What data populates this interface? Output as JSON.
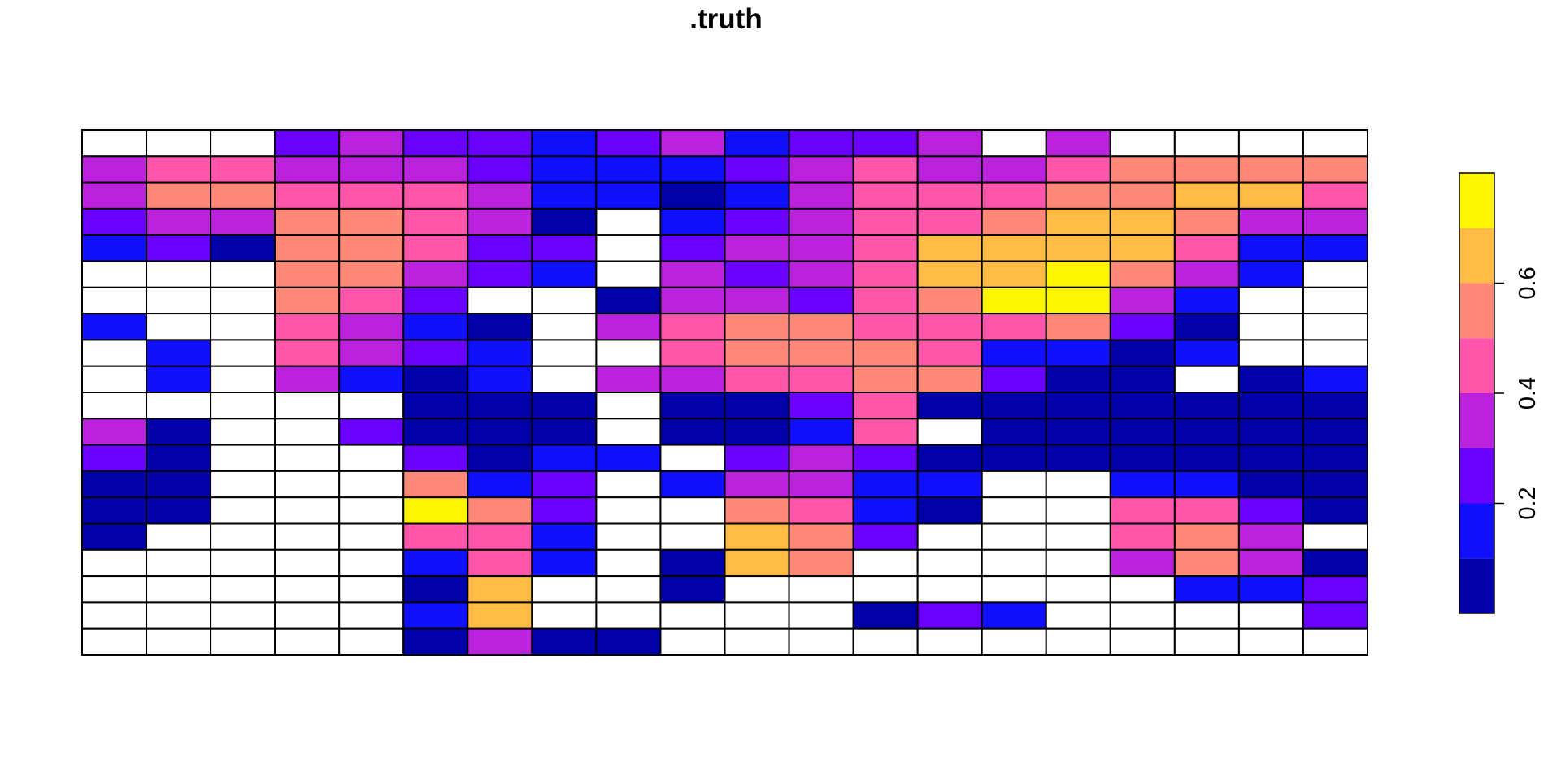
{
  "chart_data": {
    "type": "heatmap",
    "title": ".truth",
    "xlabel": "",
    "ylabel": "",
    "n_rows": 20,
    "n_cols": 20,
    "grid": true,
    "legend": "right",
    "na_color": "#FFFFFF",
    "color_breaks": [
      0.0,
      0.1,
      0.2,
      0.3,
      0.4,
      0.5,
      0.6,
      0.7,
      0.8
    ],
    "colors": [
      "#0000AA",
      "#1010FF",
      "#6A00FF",
      "#BB22DD",
      "#FF55AA",
      "#FF8877",
      "#FFBB44",
      "#FFF500"
    ],
    "colorbar": {
      "ticks": [
        0.2,
        0.4,
        0.6
      ],
      "tick_labels": [
        "0.2",
        "0.4",
        "0.6"
      ],
      "range": [
        0.0,
        0.8
      ]
    },
    "values": [
      [
        null,
        null,
        null,
        0.25,
        0.35,
        0.25,
        0.25,
        0.15,
        0.25,
        0.35,
        0.15,
        0.25,
        0.25,
        0.35,
        null,
        0.35,
        null,
        null,
        null,
        null
      ],
      [
        0.35,
        0.45,
        0.45,
        0.35,
        0.35,
        0.35,
        0.25,
        0.15,
        0.15,
        0.15,
        0.25,
        0.35,
        0.45,
        0.35,
        0.35,
        0.45,
        0.55,
        0.55,
        0.55,
        0.55
      ],
      [
        0.35,
        0.55,
        0.55,
        0.45,
        0.45,
        0.45,
        0.35,
        0.15,
        0.15,
        0.05,
        0.15,
        0.35,
        0.45,
        0.45,
        0.45,
        0.55,
        0.55,
        0.65,
        0.65,
        0.45
      ],
      [
        0.25,
        0.35,
        0.35,
        0.55,
        0.55,
        0.45,
        0.35,
        0.05,
        null,
        0.15,
        0.25,
        0.35,
        0.45,
        0.45,
        0.55,
        0.65,
        0.65,
        0.55,
        0.35,
        0.35
      ],
      [
        0.15,
        0.25,
        0.05,
        0.55,
        0.55,
        0.45,
        0.25,
        0.25,
        null,
        0.25,
        0.35,
        0.35,
        0.45,
        0.65,
        0.65,
        0.65,
        0.65,
        0.45,
        0.15,
        0.15
      ],
      [
        null,
        null,
        null,
        0.55,
        0.55,
        0.35,
        0.25,
        0.15,
        null,
        0.35,
        0.25,
        0.35,
        0.45,
        0.65,
        0.65,
        0.75,
        0.55,
        0.35,
        0.15,
        null
      ],
      [
        null,
        null,
        null,
        0.55,
        0.45,
        0.25,
        null,
        null,
        0.05,
        0.35,
        0.35,
        0.25,
        0.45,
        0.55,
        0.75,
        0.75,
        0.35,
        0.15,
        null,
        null
      ],
      [
        0.15,
        null,
        null,
        0.45,
        0.35,
        0.15,
        0.05,
        null,
        0.35,
        0.45,
        0.55,
        0.55,
        0.45,
        0.45,
        0.45,
        0.55,
        0.25,
        0.05,
        null,
        null
      ],
      [
        null,
        0.15,
        null,
        0.45,
        0.35,
        0.25,
        0.15,
        null,
        null,
        0.45,
        0.55,
        0.55,
        0.55,
        0.45,
        0.15,
        0.15,
        0.05,
        0.15,
        null,
        null
      ],
      [
        null,
        0.15,
        null,
        0.35,
        0.15,
        0.05,
        0.15,
        null,
        0.35,
        0.35,
        0.45,
        0.45,
        0.55,
        0.55,
        0.25,
        0.05,
        0.05,
        null,
        0.05,
        0.15
      ],
      [
        null,
        null,
        null,
        null,
        null,
        0.05,
        0.05,
        0.05,
        null,
        0.05,
        0.05,
        0.25,
        0.45,
        0.05,
        0.05,
        0.05,
        0.05,
        0.05,
        0.05,
        0.05
      ],
      [
        0.35,
        0.05,
        null,
        null,
        0.25,
        0.05,
        0.05,
        0.05,
        null,
        0.05,
        0.05,
        0.15,
        0.45,
        null,
        0.05,
        0.05,
        0.05,
        0.05,
        0.05,
        0.05
      ],
      [
        0.25,
        0.05,
        null,
        null,
        null,
        0.25,
        0.05,
        0.15,
        0.15,
        null,
        0.25,
        0.35,
        0.25,
        0.05,
        0.05,
        0.05,
        0.05,
        0.05,
        0.05,
        0.05
      ],
      [
        0.05,
        0.05,
        null,
        null,
        null,
        0.55,
        0.15,
        0.25,
        null,
        0.15,
        0.35,
        0.35,
        0.15,
        0.15,
        null,
        null,
        0.15,
        0.15,
        0.05,
        0.05
      ],
      [
        0.05,
        0.05,
        null,
        null,
        null,
        0.75,
        0.55,
        0.25,
        null,
        null,
        0.55,
        0.45,
        0.15,
        0.05,
        null,
        null,
        0.45,
        0.45,
        0.25,
        0.05
      ],
      [
        0.05,
        null,
        null,
        null,
        null,
        0.45,
        0.45,
        0.15,
        null,
        null,
        0.65,
        0.55,
        0.25,
        null,
        null,
        null,
        0.45,
        0.55,
        0.35,
        null
      ],
      [
        null,
        null,
        null,
        null,
        null,
        0.15,
        0.45,
        0.15,
        null,
        0.05,
        0.65,
        0.55,
        null,
        null,
        null,
        null,
        0.35,
        0.55,
        0.35,
        0.05
      ],
      [
        null,
        null,
        null,
        null,
        null,
        0.05,
        0.65,
        null,
        null,
        0.05,
        null,
        null,
        null,
        null,
        null,
        null,
        null,
        0.15,
        0.15,
        0.25
      ],
      [
        null,
        null,
        null,
        null,
        null,
        0.15,
        0.65,
        null,
        null,
        null,
        null,
        null,
        0.05,
        0.25,
        0.15,
        null,
        null,
        null,
        null,
        0.25
      ],
      [
        null,
        null,
        null,
        null,
        null,
        0.05,
        0.35,
        0.05,
        0.05,
        null,
        null,
        null,
        null,
        null,
        null,
        null,
        null,
        null,
        null,
        null
      ]
    ]
  }
}
